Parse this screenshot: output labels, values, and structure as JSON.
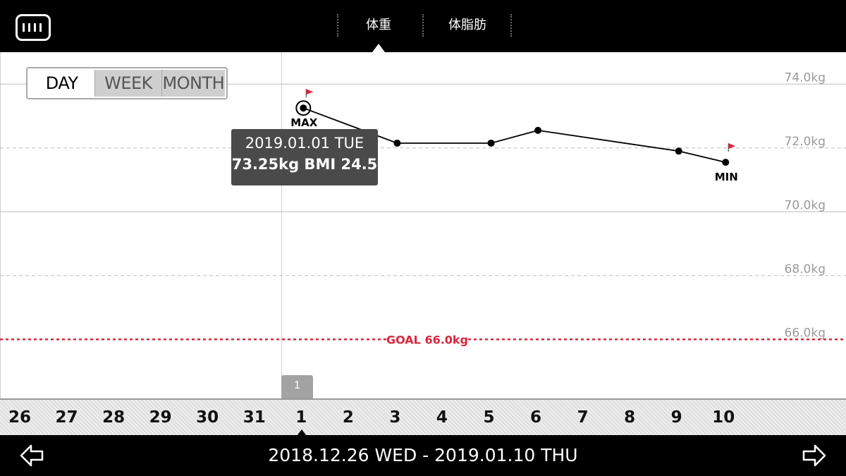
{
  "header": {
    "tabs": [
      {
        "label": "体重",
        "active": true
      },
      {
        "label": "体脂肪",
        "active": false
      }
    ]
  },
  "range_selector": {
    "options": [
      {
        "label": "DAY",
        "active": true
      },
      {
        "label": "WEEK",
        "active": false
      },
      {
        "label": "MONTH",
        "active": false
      }
    ]
  },
  "tooltip": {
    "date": "2019.01.01 TUE",
    "value": "73.25kg  BMI 24.5"
  },
  "chart_data": {
    "type": "line",
    "y_tick_labels": [
      "74.0kg",
      "72.0kg",
      "70.0kg",
      "68.0kg",
      "66.0kg"
    ],
    "y_ticks": [
      74,
      72,
      70,
      68,
      66
    ],
    "ylim": [
      64.15,
      75
    ],
    "x_days": [
      "26",
      "27",
      "28",
      "29",
      "30",
      "31",
      "1",
      "2",
      "3",
      "4",
      "5",
      "6",
      "7",
      "8",
      "9",
      "10"
    ],
    "series": [
      {
        "points": [
          {
            "day": "1",
            "value": 73.25
          },
          {
            "day": "3",
            "value": 72.15
          },
          {
            "day": "5",
            "value": 72.15
          },
          {
            "day": "6",
            "value": 72.55
          },
          {
            "day": "9",
            "value": 71.9
          },
          {
            "day": "10",
            "value": 71.55
          }
        ]
      }
    ],
    "max_label": "MAX",
    "min_label": "MIN",
    "goal": {
      "value": 66.0,
      "label": "GOAL 66.0kg"
    },
    "grid": true,
    "colors": {
      "line": "#000000",
      "goal": "#d6283f",
      "grid": "#bdbdbd",
      "flag": "#d6283f"
    }
  },
  "scale": {
    "selected_day": "1"
  },
  "footer": {
    "range_label": "2018.12.26 WED - 2019.01.10 THU",
    "prev_icon": "arrow-left-icon",
    "next_icon": "arrow-right-icon"
  }
}
